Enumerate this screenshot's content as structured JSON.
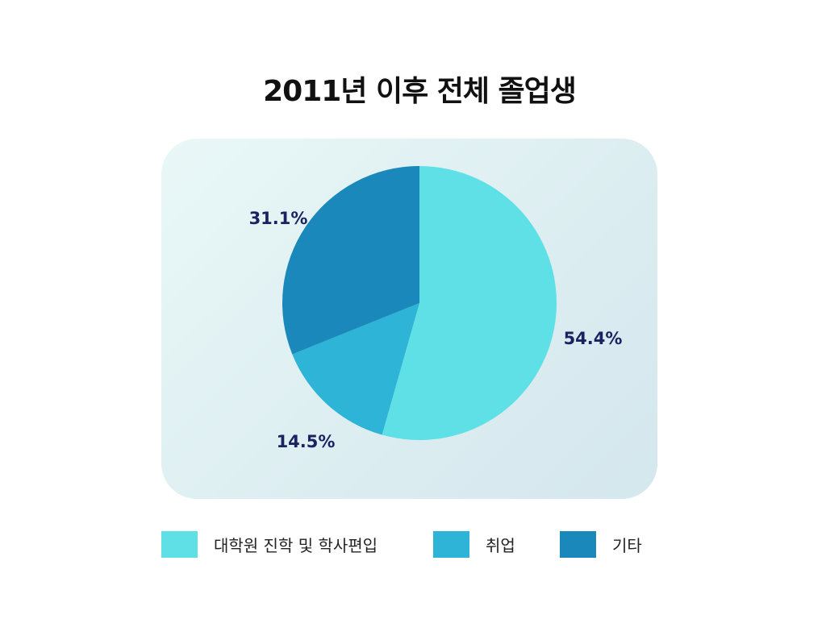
{
  "chart_data": {
    "type": "pie",
    "title": "2011년 이후 전체 졸업생",
    "categories": [
      "대학원 진학 및 학사편입",
      "취업",
      "기타"
    ],
    "values": [
      54.4,
      14.5,
      31.1
    ],
    "labels": [
      "54.4%",
      "14.5%",
      "31.1%"
    ],
    "colors": [
      "#5ee0e6",
      "#2db4d6",
      "#1b88bb"
    ],
    "legend_position": "bottom",
    "label_color": "#1b2262"
  }
}
